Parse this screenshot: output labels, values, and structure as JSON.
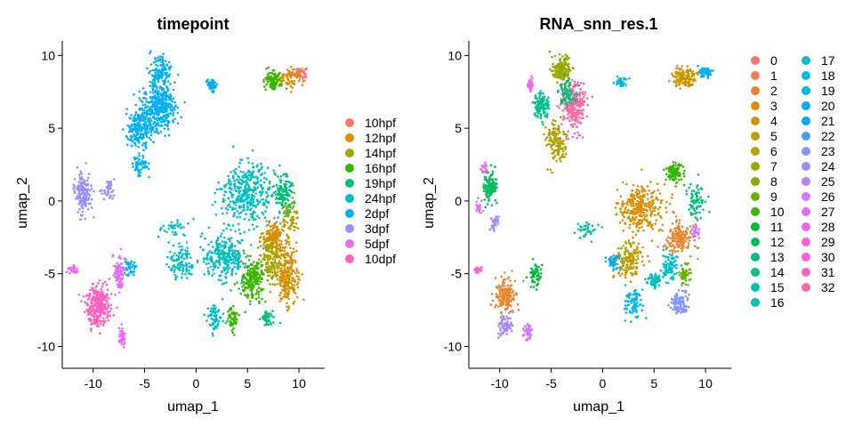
{
  "chart_data": [
    {
      "type": "scatter",
      "title": "timepoint",
      "xlabel": "umap_1",
      "ylabel": "umap_2",
      "xlim": [
        -13,
        12.5
      ],
      "ylim": [
        -11.5,
        11
      ],
      "xticks": [
        -10,
        -5,
        0,
        5,
        10
      ],
      "yticks": [
        -10,
        -5,
        0,
        5,
        10
      ],
      "grid": false,
      "legend_position": "right",
      "legend_columns": 1,
      "point_groups": [
        {
          "category": "10hpf",
          "center": [
            10.0,
            8.8
          ],
          "spread": [
            0.7,
            0.35
          ],
          "count": 70
        },
        {
          "category": "12hpf",
          "center": [
            9.0,
            8.5
          ],
          "spread": [
            1.0,
            0.6
          ],
          "count": 60
        },
        {
          "category": "12hpf",
          "center": [
            8.8,
            -5.0
          ],
          "spread": [
            1.0,
            1.8
          ],
          "count": 260
        },
        {
          "category": "12hpf",
          "center": [
            7.5,
            -2.5
          ],
          "spread": [
            1.0,
            1.0
          ],
          "count": 160
        },
        {
          "category": "14hpf",
          "center": [
            7.2,
            -4.0
          ],
          "spread": [
            1.0,
            1.5
          ],
          "count": 140
        },
        {
          "category": "14hpf",
          "center": [
            9.2,
            -1.0
          ],
          "spread": [
            0.7,
            1.2
          ],
          "count": 70
        },
        {
          "category": "16hpf",
          "center": [
            5.5,
            -5.5
          ],
          "spread": [
            1.0,
            1.3
          ],
          "count": 200
        },
        {
          "category": "16hpf",
          "center": [
            7.5,
            8.3
          ],
          "spread": [
            0.7,
            0.6
          ],
          "count": 90
        },
        {
          "category": "16hpf",
          "center": [
            3.5,
            -8.0
          ],
          "spread": [
            0.5,
            0.8
          ],
          "count": 50
        },
        {
          "category": "19hpf",
          "center": [
            8.5,
            0.5
          ],
          "spread": [
            0.9,
            1.1
          ],
          "count": 120
        },
        {
          "category": "19hpf",
          "center": [
            7.0,
            -8.0
          ],
          "spread": [
            0.6,
            0.5
          ],
          "count": 40
        },
        {
          "category": "24hpf",
          "center": [
            5.0,
            0.5
          ],
          "spread": [
            2.3,
            1.8
          ],
          "count": 380
        },
        {
          "category": "24hpf",
          "center": [
            2.8,
            -3.8
          ],
          "spread": [
            1.8,
            1.4
          ],
          "count": 260
        },
        {
          "category": "24hpf",
          "center": [
            -1.5,
            -4.2
          ],
          "spread": [
            1.2,
            1.0
          ],
          "count": 110
        },
        {
          "category": "24hpf",
          "center": [
            1.8,
            -8.0
          ],
          "spread": [
            0.6,
            1.0
          ],
          "count": 70
        },
        {
          "category": "24hpf",
          "center": [
            -2.0,
            -1.8
          ],
          "spread": [
            1.5,
            0.6
          ],
          "count": 40
        },
        {
          "category": "2dpf",
          "center": [
            -3.5,
            6.5
          ],
          "spread": [
            1.6,
            1.6
          ],
          "count": 380
        },
        {
          "category": "2dpf",
          "center": [
            -5.5,
            5.0
          ],
          "spread": [
            1.2,
            1.2
          ],
          "count": 220
        },
        {
          "category": "2dpf",
          "center": [
            -3.5,
            9.0
          ],
          "spread": [
            1.0,
            0.8
          ],
          "count": 120
        },
        {
          "category": "2dpf",
          "center": [
            -5.5,
            2.5
          ],
          "spread": [
            0.7,
            0.5
          ],
          "count": 60
        },
        {
          "category": "2dpf",
          "center": [
            1.5,
            8.0
          ],
          "spread": [
            0.5,
            0.35
          ],
          "count": 50
        },
        {
          "category": "2dpf",
          "center": [
            -6.5,
            -4.5
          ],
          "spread": [
            0.6,
            0.6
          ],
          "count": 40
        },
        {
          "category": "3dpf",
          "center": [
            -11.0,
            0.5
          ],
          "spread": [
            0.7,
            1.3
          ],
          "count": 160
        },
        {
          "category": "3dpf",
          "center": [
            -8.5,
            0.8
          ],
          "spread": [
            0.8,
            0.6
          ],
          "count": 40
        },
        {
          "category": "5dpf",
          "center": [
            -7.5,
            -5.0
          ],
          "spread": [
            0.5,
            1.2
          ],
          "count": 90
        },
        {
          "category": "5dpf",
          "center": [
            -7.2,
            -9.3
          ],
          "spread": [
            0.3,
            0.5
          ],
          "count": 40
        },
        {
          "category": "5dpf",
          "center": [
            -12.0,
            -4.7
          ],
          "spread": [
            0.5,
            0.2
          ],
          "count": 30
        },
        {
          "category": "10dpf",
          "center": [
            -9.5,
            -7.2
          ],
          "spread": [
            1.0,
            1.3
          ],
          "count": 300
        }
      ],
      "legend": {
        "labels": [
          "10hpf",
          "12hpf",
          "14hpf",
          "16hpf",
          "19hpf",
          "24hpf",
          "2dpf",
          "3dpf",
          "5dpf",
          "10dpf"
        ],
        "colors": [
          "#F8766D",
          "#D89000",
          "#A3A500",
          "#39B600",
          "#00BF7D",
          "#00BFC4",
          "#00B0F6",
          "#9590FF",
          "#E76BF3",
          "#FF62BC"
        ]
      }
    },
    {
      "type": "scatter",
      "title": "RNA_snn_res.1",
      "xlabel": "umap_1",
      "ylabel": "umap_2",
      "xlim": [
        -13,
        12.5
      ],
      "ylim": [
        -11.5,
        11
      ],
      "xticks": [
        -10,
        -5,
        0,
        5,
        10
      ],
      "yticks": [
        -10,
        -5,
        0,
        5,
        10
      ],
      "grid": false,
      "legend_position": "right",
      "legend_columns": 2,
      "point_groups": [
        {
          "category": "20",
          "center": [
            10.0,
            8.8
          ],
          "spread": [
            0.6,
            0.3
          ],
          "count": 60
        },
        {
          "category": "4",
          "center": [
            8.0,
            8.5
          ],
          "spread": [
            1.0,
            0.6
          ],
          "count": 130
        },
        {
          "category": "32",
          "center": [
            -2.8,
            6.5
          ],
          "spread": [
            1.0,
            1.5
          ],
          "count": 260
        },
        {
          "category": "7",
          "center": [
            -4.0,
            9.0
          ],
          "spread": [
            0.8,
            0.8
          ],
          "count": 160
        },
        {
          "category": "6",
          "center": [
            -4.5,
            4.0
          ],
          "spread": [
            0.9,
            1.3
          ],
          "count": 140
        },
        {
          "category": "14",
          "center": [
            -6.0,
            6.5
          ],
          "spread": [
            0.8,
            0.8
          ],
          "count": 120
        },
        {
          "category": "13",
          "center": [
            -3.5,
            7.5
          ],
          "spread": [
            0.8,
            0.8
          ],
          "count": 80
        },
        {
          "category": "28",
          "center": [
            -7.0,
            8.0
          ],
          "spread": [
            0.3,
            0.4
          ],
          "count": 30
        },
        {
          "category": "18",
          "center": [
            1.8,
            8.2
          ],
          "spread": [
            0.5,
            0.3
          ],
          "count": 40
        },
        {
          "category": "12",
          "center": [
            -11.0,
            1.0
          ],
          "spread": [
            0.7,
            1.0
          ],
          "count": 120
        },
        {
          "category": "27",
          "center": [
            -11.5,
            2.3
          ],
          "spread": [
            0.3,
            0.3
          ],
          "count": 20
        },
        {
          "category": "27",
          "center": [
            -12.0,
            -0.5
          ],
          "spread": [
            0.3,
            0.6
          ],
          "count": 20
        },
        {
          "category": "24",
          "center": [
            -10.5,
            -1.5
          ],
          "spread": [
            0.5,
            0.5
          ],
          "count": 30
        },
        {
          "category": "10",
          "center": [
            7.0,
            2.0
          ],
          "spread": [
            0.8,
            0.7
          ],
          "count": 90
        },
        {
          "category": "13",
          "center": [
            9.0,
            0.0
          ],
          "spread": [
            0.7,
            1.0
          ],
          "count": 70
        },
        {
          "category": "26",
          "center": [
            9.0,
            -2.0
          ],
          "spread": [
            0.4,
            0.5
          ],
          "count": 30
        },
        {
          "category": "2",
          "center": [
            7.5,
            -2.5
          ],
          "spread": [
            1.2,
            1.0
          ],
          "count": 160
        },
        {
          "category": "3",
          "center": [
            3.8,
            -0.5
          ],
          "spread": [
            2.0,
            1.5
          ],
          "count": 300
        },
        {
          "category": "17",
          "center": [
            6.5,
            -4.5
          ],
          "spread": [
            0.8,
            0.8
          ],
          "count": 90
        },
        {
          "category": "16",
          "center": [
            5.0,
            -5.5
          ],
          "spread": [
            0.6,
            0.5
          ],
          "count": 60
        },
        {
          "category": "9",
          "center": [
            8.0,
            -5.0
          ],
          "spread": [
            0.5,
            0.6
          ],
          "count": 50
        },
        {
          "category": "23",
          "center": [
            7.5,
            -7.0
          ],
          "spread": [
            0.8,
            0.8
          ],
          "count": 100
        },
        {
          "category": "5",
          "center": [
            2.5,
            -4.0
          ],
          "spread": [
            1.2,
            1.2
          ],
          "count": 160
        },
        {
          "category": "19",
          "center": [
            3.0,
            -7.0
          ],
          "spread": [
            0.7,
            1.0
          ],
          "count": 80
        },
        {
          "category": "21",
          "center": [
            1.0,
            -4.2
          ],
          "spread": [
            0.5,
            0.4
          ],
          "count": 40
        },
        {
          "category": "15",
          "center": [
            -1.5,
            -2.0
          ],
          "spread": [
            1.0,
            0.6
          ],
          "count": 40
        },
        {
          "category": "11",
          "center": [
            -6.5,
            -5.0
          ],
          "spread": [
            0.6,
            0.7
          ],
          "count": 60
        },
        {
          "category": "2",
          "center": [
            -9.5,
            -6.5
          ],
          "spread": [
            1.0,
            1.0
          ],
          "count": 160
        },
        {
          "category": "24",
          "center": [
            -9.5,
            -8.5
          ],
          "spread": [
            0.6,
            0.6
          ],
          "count": 70
        },
        {
          "category": "26",
          "center": [
            -7.2,
            -9.0
          ],
          "spread": [
            0.4,
            0.6
          ],
          "count": 40
        },
        {
          "category": "30",
          "center": [
            -12.0,
            -4.7
          ],
          "spread": [
            0.4,
            0.2
          ],
          "count": 20
        }
      ],
      "legend": {
        "labels": [
          "0",
          "1",
          "2",
          "3",
          "4",
          "5",
          "6",
          "7",
          "8",
          "9",
          "10",
          "11",
          "12",
          "13",
          "14",
          "15",
          "16",
          "17",
          "18",
          "19",
          "20",
          "21",
          "22",
          "23",
          "24",
          "25",
          "26",
          "27",
          "28",
          "29",
          "30",
          "31",
          "32"
        ],
        "colors": [
          "#F8766D",
          "#F27D52",
          "#E8852E",
          "#DB8E00",
          "#CD9600",
          "#BE9C00",
          "#AEA200",
          "#9AA800",
          "#82AD00",
          "#64B200",
          "#35B700",
          "#00BA38",
          "#00BD5C",
          "#00BF77",
          "#00C08F",
          "#00C1A4",
          "#00C0B8",
          "#00BECA",
          "#00BBDA",
          "#00B6E9",
          "#00B0F6",
          "#00A8FF",
          "#4D9FFF",
          "#8495FF",
          "#A58AFF",
          "#BF80FF",
          "#D376FF",
          "#E36EF6",
          "#EF67EB",
          "#F863DC",
          "#FD61D1",
          "#FF62BC",
          "#FF67A4"
        ]
      }
    }
  ]
}
